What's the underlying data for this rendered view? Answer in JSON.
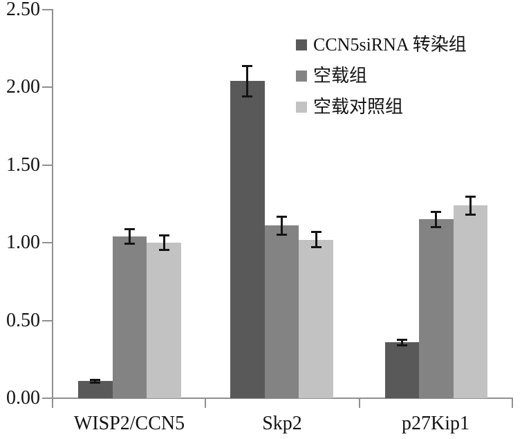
{
  "chart_data": {
    "type": "bar",
    "title": "",
    "categories": [
      "WISP2/CCN5",
      "Skp2",
      "p27Kip1"
    ],
    "series": [
      {
        "name": "CCN5siRNA 转染组",
        "color": "#595959",
        "values": [
          0.11,
          2.04,
          0.36
        ],
        "errors": [
          0.01,
          0.1,
          0.02
        ]
      },
      {
        "name": "空载组",
        "color": "#838383",
        "values": [
          1.04,
          1.11,
          1.15
        ],
        "errors": [
          0.05,
          0.06,
          0.05
        ]
      },
      {
        "name": "空载对照组",
        "color": "#c2c2c2",
        "values": [
          1.0,
          1.02,
          1.24
        ],
        "errors": [
          0.05,
          0.05,
          0.06
        ]
      }
    ],
    "y_axis": {
      "tick_labels": [
        "0.00",
        "0.50",
        "1.00",
        "1.50",
        "2.00",
        "2.50"
      ],
      "tick_values": [
        0,
        0.5,
        1.0,
        1.5,
        2.0,
        2.5
      ],
      "min": 0,
      "max": 2.5
    },
    "xlabel": "",
    "ylabel": "",
    "grid": false,
    "error_bars": true,
    "legend_position": "top-right",
    "colors": {
      "axis": "#8f8f8f",
      "error_bar": "#141414",
      "text": "#131313",
      "background": "#ffffff"
    }
  }
}
